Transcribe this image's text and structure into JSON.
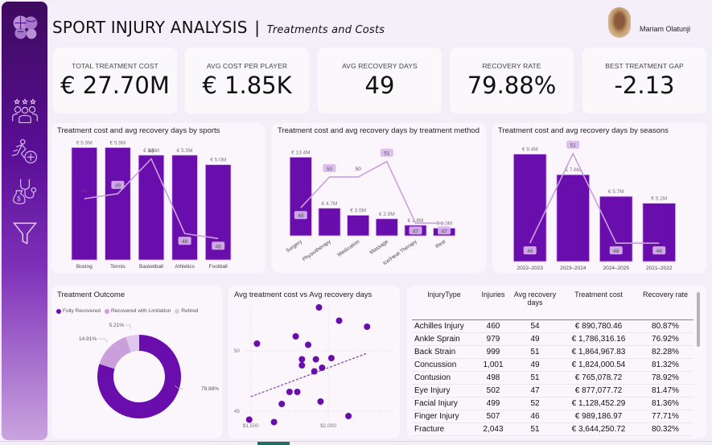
{
  "header": {
    "title": "SPORT INJURY ANALYSIS",
    "separator": "|",
    "subtitle": "Treatments and Costs",
    "user_name": "Mariam Olatunji"
  },
  "sidebar": {
    "items": [
      {
        "icon": "sports-balls-icon",
        "label": "Home"
      },
      {
        "icon": "team-icon",
        "label": "Players"
      },
      {
        "icon": "injury-icon",
        "label": "Injuries"
      },
      {
        "icon": "medical-cost-icon",
        "label": "Treatments and Costs"
      },
      {
        "icon": "filter-icon",
        "label": "Filters"
      }
    ]
  },
  "kpis": [
    {
      "label": "TOTAL TREATMENT COST",
      "value": "€ 27.70M"
    },
    {
      "label": "AVG COST PER PLAYER",
      "value": "€ 1.85K"
    },
    {
      "label": "AVG RECOVERY DAYS",
      "value": "49"
    },
    {
      "label": "RECOVERY RATE",
      "value": "79.88%"
    },
    {
      "label": "BEST TREATMENT GAP",
      "value": "-2.13"
    }
  ],
  "colors": {
    "bar": "#6a0dad",
    "line": "#c9a0dc",
    "accent": "#5a0f96",
    "limitation": "#c9a0dc",
    "retired": "#dfc6ec"
  },
  "chart_data": [
    {
      "type": "bar",
      "title": "Treatment cost and avg recovery days by sports",
      "categories": [
        "Boxing",
        "Tennis",
        "Basketball",
        "Athletics",
        "Football"
      ],
      "series": [
        {
          "name": "Treatment cost",
          "values": [
            5.9,
            5.9,
            5.5,
            5.5,
            5.0
          ],
          "labels": [
            "€ 5.9M",
            "€ 5.9M",
            "€ 5.5M",
            "€ 5.5M",
            "€ 5.0M"
          ]
        },
        {
          "name": "Avg recovery days",
          "type": "line",
          "values": [
            48.6,
            48.7,
            49.4,
            47.9,
            47.8
          ],
          "labels": [
            "49",
            "49",
            "49",
            "48",
            "48"
          ]
        }
      ],
      "ylim": [
        0,
        6
      ]
    },
    {
      "type": "bar",
      "title": "Treatment cost and avg recovery days by treatment method",
      "categories": [
        "Surgery",
        "Physiotherapy",
        "Medication",
        "Massage",
        "Ice/Heat Therapy",
        "Rest"
      ],
      "series": [
        {
          "name": "Treatment cost",
          "values": [
            13.4,
            4.7,
            3.5,
            2.9,
            1.8,
            1.3
          ],
          "labels": [
            "€ 13.4M",
            "€ 4.7M",
            "€ 3.5M",
            "€ 2.9M",
            "€ 1.8M",
            "€ 1.3M"
          ]
        },
        {
          "name": "Avg recovery days",
          "type": "line",
          "values": [
            48,
            50,
            50,
            51,
            47,
            47
          ],
          "labels": [
            "48",
            "50",
            "50",
            "51",
            "47",
            "47"
          ]
        }
      ],
      "ylim": [
        0,
        14
      ]
    },
    {
      "type": "bar",
      "title": "Treatment cost and avg recovery days by seasons",
      "categories": [
        "2022–2023",
        "2023–2024",
        "2024–2025",
        "2021–2022"
      ],
      "series": [
        {
          "name": "Treatment cost",
          "values": [
            9.4,
            7.6,
            5.7,
            5.1
          ],
          "labels": [
            "€ 9.4M",
            "€ 7.6M",
            "€ 5.7M",
            "€ 5.1M"
          ]
        },
        {
          "name": "Avg recovery days",
          "type": "line",
          "values": [
            48,
            51,
            48,
            48
          ],
          "labels": [
            "48",
            "51",
            "48",
            "48"
          ]
        }
      ],
      "ylim": [
        0,
        10
      ]
    },
    {
      "type": "pie",
      "title": "Treatment Outcome",
      "categories": [
        "Fully Recovered",
        "Recovered with Limitation",
        "Retired"
      ],
      "values": [
        79.88,
        14.91,
        5.21
      ],
      "labels": [
        "79.88%",
        "14.91%",
        "5.21%"
      ],
      "legend": "top-left"
    },
    {
      "type": "scatter",
      "title": "Avg treatment cost vs Avg recovery days",
      "x_ticks": [
        "$1,500",
        "$2,000"
      ],
      "y_ticks": [
        "45",
        "50"
      ],
      "xlim": [
        1460,
        2420
      ],
      "ylim": [
        44.2,
        53.8
      ],
      "points": [
        [
          1940,
          53.6
        ],
        [
          2070,
          52.5
        ],
        [
          2250,
          52.0
        ],
        [
          1540,
          50.6
        ],
        [
          1790,
          51.2
        ],
        [
          1870,
          50.5
        ],
        [
          1830,
          49.3
        ],
        [
          1920,
          49.3
        ],
        [
          2020,
          49.4
        ],
        [
          1830,
          48.8
        ],
        [
          1960,
          48.6
        ],
        [
          1910,
          48.3
        ],
        [
          1750,
          46.6
        ],
        [
          1800,
          46.6
        ],
        [
          1700,
          45.6
        ],
        [
          1950,
          45.8
        ],
        [
          2130,
          44.6
        ],
        [
          1490,
          44.3
        ],
        [
          1650,
          44.1
        ]
      ],
      "trendline": {
        "x": [
          1500,
          2250
        ],
        "y": [
          46.2,
          49.8
        ]
      },
      "grid": true
    }
  ],
  "table": {
    "columns": [
      "InjuryType",
      "Injuries",
      "Avg recovery days",
      "Treatment cost",
      "Recovery rate"
    ],
    "rows": [
      [
        "Achilles Injury",
        "460",
        "54",
        "€ 890,780.46",
        "80.87%"
      ],
      [
        "Ankle Sprain",
        "979",
        "49",
        "€ 1,786,316.16",
        "76.92%"
      ],
      [
        "Back Strain",
        "999",
        "51",
        "€ 1,864,967.83",
        "82.28%"
      ],
      [
        "Concussion",
        "1,001",
        "49",
        "€ 1,824,000.54",
        "81.32%"
      ],
      [
        "Contusion",
        "498",
        "51",
        "€ 765,078.72",
        "78.92%"
      ],
      [
        "Eye Injury",
        "502",
        "47",
        "€ 877,077.72",
        "81.47%"
      ],
      [
        "Facial Injury",
        "499",
        "52",
        "€ 1,128,452.29",
        "81.36%"
      ],
      [
        "Finger Injury",
        "507",
        "46",
        "€ 989,186.97",
        "77.71%"
      ],
      [
        "Fracture",
        "2,043",
        "51",
        "€ 3,644,250.72",
        "80.32%"
      ]
    ]
  }
}
